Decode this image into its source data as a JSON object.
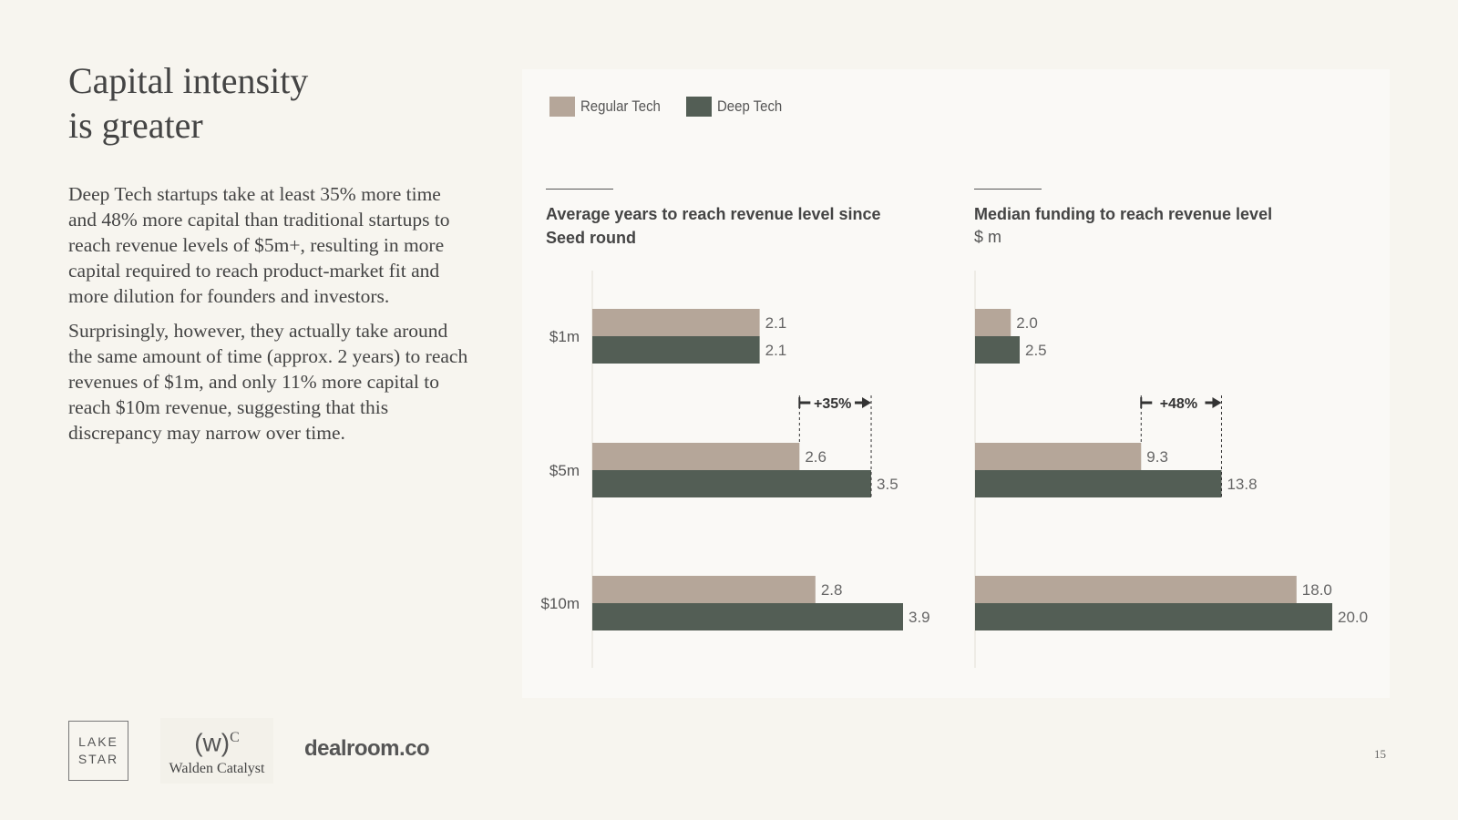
{
  "slide": {
    "title_line1": "Capital intensity",
    "title_line2": "is greater",
    "paragraph1": "Deep Tech startups take at least 35% more time and 48% more capital than traditional startups to reach revenue levels of $5m+, resulting in more capital required to reach product-market fit and more dilution for founders and investors.",
    "paragraph2": "Surprisingly, however, they actually take around the same amount of time (approx. 2 years) to reach revenues of $1m, and only 11% more capital to reach $10m revenue, suggesting that this discrepancy may narrow over time.",
    "page_number": "15"
  },
  "legend": [
    {
      "name": "Regular Tech",
      "color": "#b5a699"
    },
    {
      "name": "Deep Tech",
      "color": "#535e55"
    }
  ],
  "logos": {
    "lake_line1": "LAKE",
    "lake_line2": "STAR",
    "walden_mark": "(w)",
    "walden_sup": "C",
    "walden_name": "Walden Catalyst",
    "dealroom": "dealroom.co"
  },
  "chart_data": [
    {
      "type": "bar",
      "orientation": "horizontal",
      "title": "Average years to reach revenue level since Seed round",
      "title_line1": "Average years to reach revenue level since",
      "title_line2": "Seed round",
      "unit": "",
      "categories": [
        "$1m",
        "$5m",
        "$10m"
      ],
      "series": [
        {
          "name": "Regular Tech",
          "values": [
            2.1,
            2.6,
            2.8
          ],
          "labels": [
            "2.1",
            "2.6",
            "2.8"
          ]
        },
        {
          "name": "Deep Tech",
          "values": [
            2.1,
            3.5,
            3.9
          ],
          "labels": [
            "2.1",
            "3.5",
            "3.9"
          ]
        }
      ],
      "xlim": [
        0,
        3.9
      ],
      "annotation": {
        "category": "$5m",
        "text": "+35%"
      }
    },
    {
      "type": "bar",
      "orientation": "horizontal",
      "title": "Median funding to reach revenue level",
      "title_line1": "Median funding to reach revenue level",
      "title_line2": "",
      "unit": "$ m",
      "categories": [
        "$1m",
        "$5m",
        "$10m"
      ],
      "series": [
        {
          "name": "Regular Tech",
          "values": [
            2.0,
            9.3,
            18.0
          ],
          "labels": [
            "2.0",
            "9.3",
            "18.0"
          ]
        },
        {
          "name": "Deep Tech",
          "values": [
            2.5,
            13.8,
            20.0
          ],
          "labels": [
            "2.5",
            "13.8",
            "20.0"
          ]
        }
      ],
      "xlim": [
        0,
        20.0
      ],
      "annotation": {
        "category": "$5m",
        "text": "+48%"
      }
    }
  ]
}
